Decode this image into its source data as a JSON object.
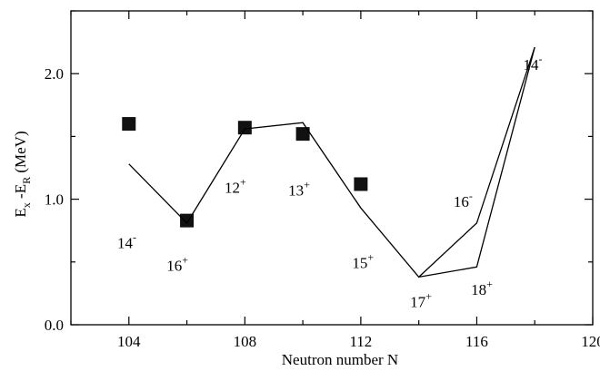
{
  "chart_data": {
    "type": "scatter",
    "xlabel": "Neutron number N",
    "ylabel_main": "E",
    "ylabel_sub_x": "x",
    "ylabel_mid": " -E",
    "ylabel_sub_r": "R",
    "ylabel_unit": " (MeV)",
    "xlim": [
      102,
      120
    ],
    "ylim": [
      0,
      2.5
    ],
    "x_ticks": [
      104,
      108,
      112,
      116,
      120
    ],
    "x_tick_labels": [
      "104",
      "108",
      "112",
      "116",
      "120"
    ],
    "y_ticks": [
      0,
      1,
      2
    ],
    "y_tick_labels": [
      "0.0",
      "1.0",
      "2.0"
    ],
    "grid": false,
    "series": [
      {
        "kind": "markers",
        "marker": "square",
        "points": [
          {
            "x": 104,
            "y": 1.6
          },
          {
            "x": 106,
            "y": 0.83
          },
          {
            "x": 108,
            "y": 1.57
          },
          {
            "x": 110,
            "y": 1.52
          },
          {
            "x": 112,
            "y": 1.12
          }
        ]
      },
      {
        "kind": "line",
        "points": [
          {
            "x": 104,
            "y": 1.28
          },
          {
            "x": 106,
            "y": 0.81
          },
          {
            "x": 108,
            "y": 1.56
          },
          {
            "x": 110,
            "y": 1.61
          },
          {
            "x": 112,
            "y": 0.93
          },
          {
            "x": 114,
            "y": 0.38
          },
          {
            "x": 116,
            "y": 0.81
          },
          {
            "x": 118,
            "y": 2.21
          }
        ]
      },
      {
        "kind": "line",
        "points": [
          {
            "x": 114,
            "y": 0.38
          },
          {
            "x": 116,
            "y": 0.46
          },
          {
            "x": 118,
            "y": 2.21
          }
        ]
      }
    ],
    "annotations": [
      {
        "text": "14",
        "sup": "-",
        "x": 103.6,
        "y": 0.61
      },
      {
        "text": "16",
        "sup": "+",
        "x": 105.3,
        "y": 0.43
      },
      {
        "text": "12",
        "sup": "+",
        "x": 107.3,
        "y": 1.05
      },
      {
        "text": "13",
        "sup": "+",
        "x": 109.5,
        "y": 1.03
      },
      {
        "text": "15",
        "sup": "+",
        "x": 111.7,
        "y": 0.45
      },
      {
        "text": "17",
        "sup": "+",
        "x": 113.7,
        "y": 0.14
      },
      {
        "text": "18",
        "sup": "+",
        "x": 115.8,
        "y": 0.24
      },
      {
        "text": "16",
        "sup": "-",
        "x": 115.2,
        "y": 0.94
      },
      {
        "text": "14",
        "sup": "-",
        "x": 117.6,
        "y": 2.03
      }
    ]
  }
}
